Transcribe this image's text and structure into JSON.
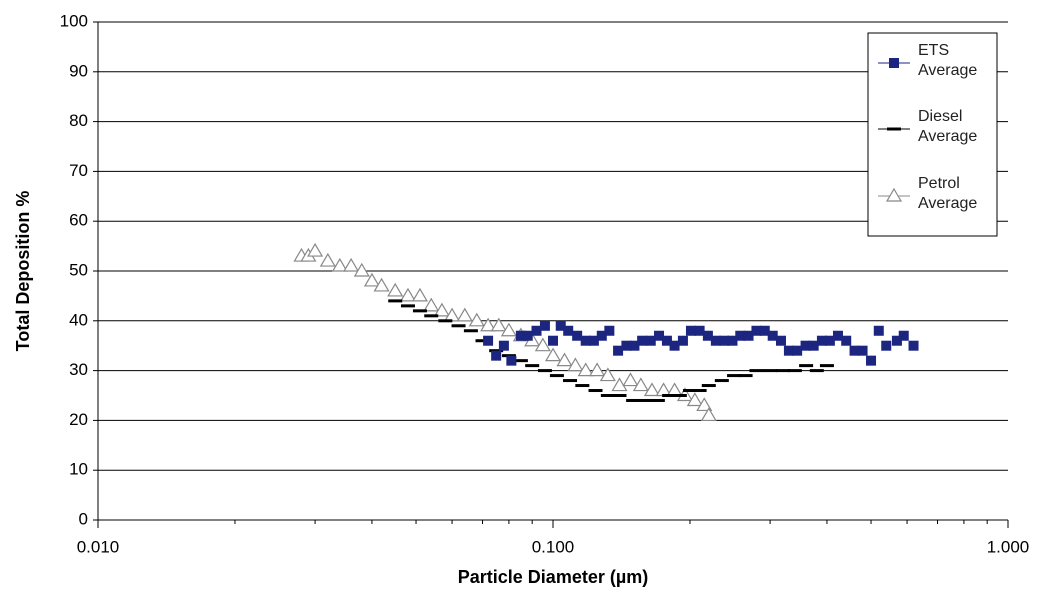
{
  "chart_data": {
    "type": "scatter",
    "x_label": "Particle Diameter (µm)",
    "y_label": "Total Deposition %",
    "log_x": true,
    "grid": true,
    "legend": "upper right",
    "xlim": [
      0.01,
      1
    ],
    "xticks": [
      {
        "value": 0.01,
        "label": "0.010"
      },
      {
        "value": 0.1,
        "label": "0.100"
      },
      {
        "value": 1,
        "label": "1.000"
      }
    ],
    "ylim": [
      0,
      100
    ],
    "yticks": [
      0,
      10,
      20,
      30,
      40,
      50,
      60,
      70,
      80,
      90,
      100
    ],
    "series": [
      {
        "name": "ETS Average",
        "color": "#1c2580",
        "marker": "square",
        "x": [
          0.072,
          0.075,
          0.078,
          0.081,
          0.085,
          0.088,
          0.092,
          0.096,
          0.1,
          0.104,
          0.108,
          0.113,
          0.118,
          0.123,
          0.128,
          0.133,
          0.139,
          0.145,
          0.151,
          0.157,
          0.164,
          0.171,
          0.178,
          0.185,
          0.193,
          0.201,
          0.21,
          0.219,
          0.228,
          0.238,
          0.248,
          0.258,
          0.269,
          0.28,
          0.292,
          0.304,
          0.317,
          0.33,
          0.344,
          0.359,
          0.374,
          0.39,
          0.406,
          0.423,
          0.441,
          0.46,
          0.479,
          0.5,
          0.52,
          0.54,
          0.57,
          0.59,
          0.62
        ],
        "values": [
          36,
          33,
          35,
          32,
          37,
          37,
          38,
          39,
          36,
          39,
          38,
          37,
          36,
          36,
          37,
          38,
          34,
          35,
          35,
          36,
          36,
          37,
          36,
          35,
          36,
          38,
          38,
          37,
          36,
          36,
          36,
          37,
          37,
          38,
          38,
          37,
          36,
          34,
          34,
          35,
          35,
          36,
          36,
          37,
          36,
          34,
          34,
          32,
          38,
          35,
          36,
          37,
          35
        ]
      },
      {
        "name": "Diesel Average",
        "color": "#000000",
        "marker": "dash",
        "x": [
          0.045,
          0.048,
          0.051,
          0.054,
          0.058,
          0.062,
          0.066,
          0.07,
          0.075,
          0.08,
          0.085,
          0.09,
          0.096,
          0.102,
          0.109,
          0.116,
          0.124,
          0.132,
          0.14,
          0.15,
          0.16,
          0.17,
          0.18,
          0.19,
          0.2,
          0.21,
          0.22,
          0.235,
          0.25,
          0.265,
          0.28,
          0.3,
          0.32,
          0.34,
          0.36,
          0.38,
          0.4
        ],
        "values": [
          44,
          43,
          42,
          41,
          40,
          39,
          38,
          36,
          34,
          33,
          32,
          31,
          30,
          29,
          28,
          27,
          26,
          25,
          25,
          24,
          24,
          24,
          25,
          25,
          26,
          26,
          27,
          28,
          29,
          29,
          30,
          30,
          30,
          30,
          31,
          30,
          31
        ]
      },
      {
        "name": "Petrol Average",
        "color": "#888888",
        "marker": "triangle",
        "x": [
          0.028,
          0.029,
          0.03,
          0.032,
          0.034,
          0.036,
          0.038,
          0.04,
          0.042,
          0.045,
          0.048,
          0.051,
          0.054,
          0.057,
          0.06,
          0.064,
          0.068,
          0.072,
          0.076,
          0.08,
          0.085,
          0.09,
          0.095,
          0.1,
          0.106,
          0.112,
          0.118,
          0.125,
          0.132,
          0.14,
          0.148,
          0.156,
          0.165,
          0.175,
          0.185,
          0.195,
          0.205,
          0.215,
          0.22
        ],
        "values": [
          53,
          53,
          54,
          52,
          51,
          51,
          50,
          48,
          47,
          46,
          45,
          45,
          43,
          42,
          41,
          41,
          40,
          39,
          39,
          38,
          37,
          36,
          35,
          33,
          32,
          31,
          30,
          30,
          29,
          27,
          28,
          27,
          26,
          26,
          26,
          25,
          24,
          23,
          21
        ]
      }
    ]
  }
}
